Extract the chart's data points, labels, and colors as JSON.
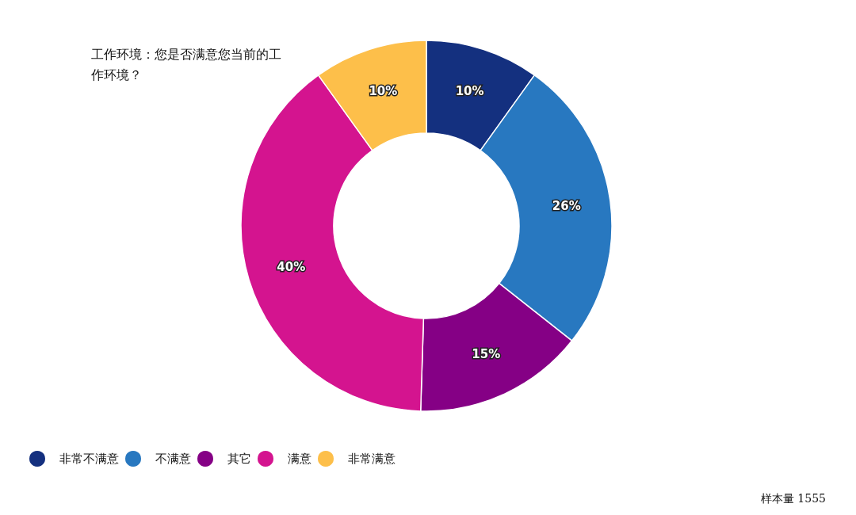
{
  "chart_data": {
    "type": "donut",
    "title": "工作环境：您是否满意您当前的工作环境？",
    "categories": [
      "非常不满意",
      "不满意",
      "其它",
      "满意",
      "非常满意"
    ],
    "values": [
      10,
      26,
      15,
      40,
      10
    ],
    "value_labels": [
      "10%",
      "26%",
      "15%",
      "40%",
      "10%"
    ],
    "colors": [
      "#14307f",
      "#2878c0",
      "#850085",
      "#d4148f",
      "#fdbf4a"
    ],
    "legend": "bottom left",
    "annotations": [
      "样本量 1555"
    ]
  }
}
